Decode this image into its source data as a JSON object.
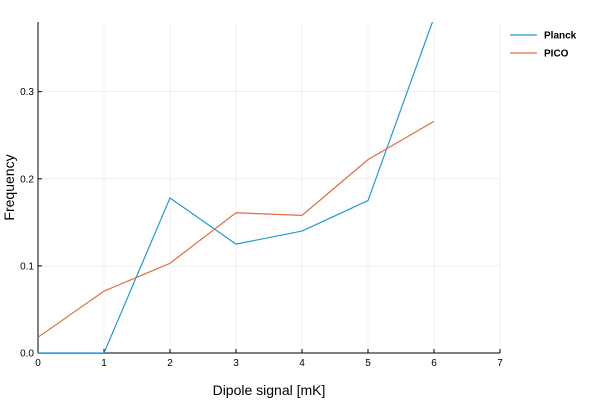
{
  "chart_data": {
    "type": "line",
    "title": "",
    "xlabel": "Dipole signal [mK]",
    "ylabel": "Frequency",
    "xlim": [
      0,
      7
    ],
    "ylim": [
      0,
      0.38
    ],
    "xticks": [
      0,
      1,
      2,
      3,
      4,
      5,
      6,
      7
    ],
    "yticks": [
      0.0,
      0.1,
      0.2,
      0.3
    ],
    "ytick_labels": [
      "0.0",
      "0.1",
      "0.2",
      "0.3"
    ],
    "grid": true,
    "legend_position": "top-right",
    "series": [
      {
        "name": "Planck",
        "color": "#1f9bd7",
        "x": [
          0,
          1,
          2,
          3,
          4,
          5,
          6
        ],
        "y": [
          0.0,
          0.0,
          0.178,
          0.125,
          0.14,
          0.175,
          0.385
        ]
      },
      {
        "name": "PICO",
        "color": "#e26f46",
        "x": [
          0,
          1,
          2,
          3,
          4,
          5,
          6
        ],
        "y": [
          0.018,
          0.071,
          0.103,
          0.161,
          0.158,
          0.222,
          0.266
        ]
      }
    ]
  }
}
